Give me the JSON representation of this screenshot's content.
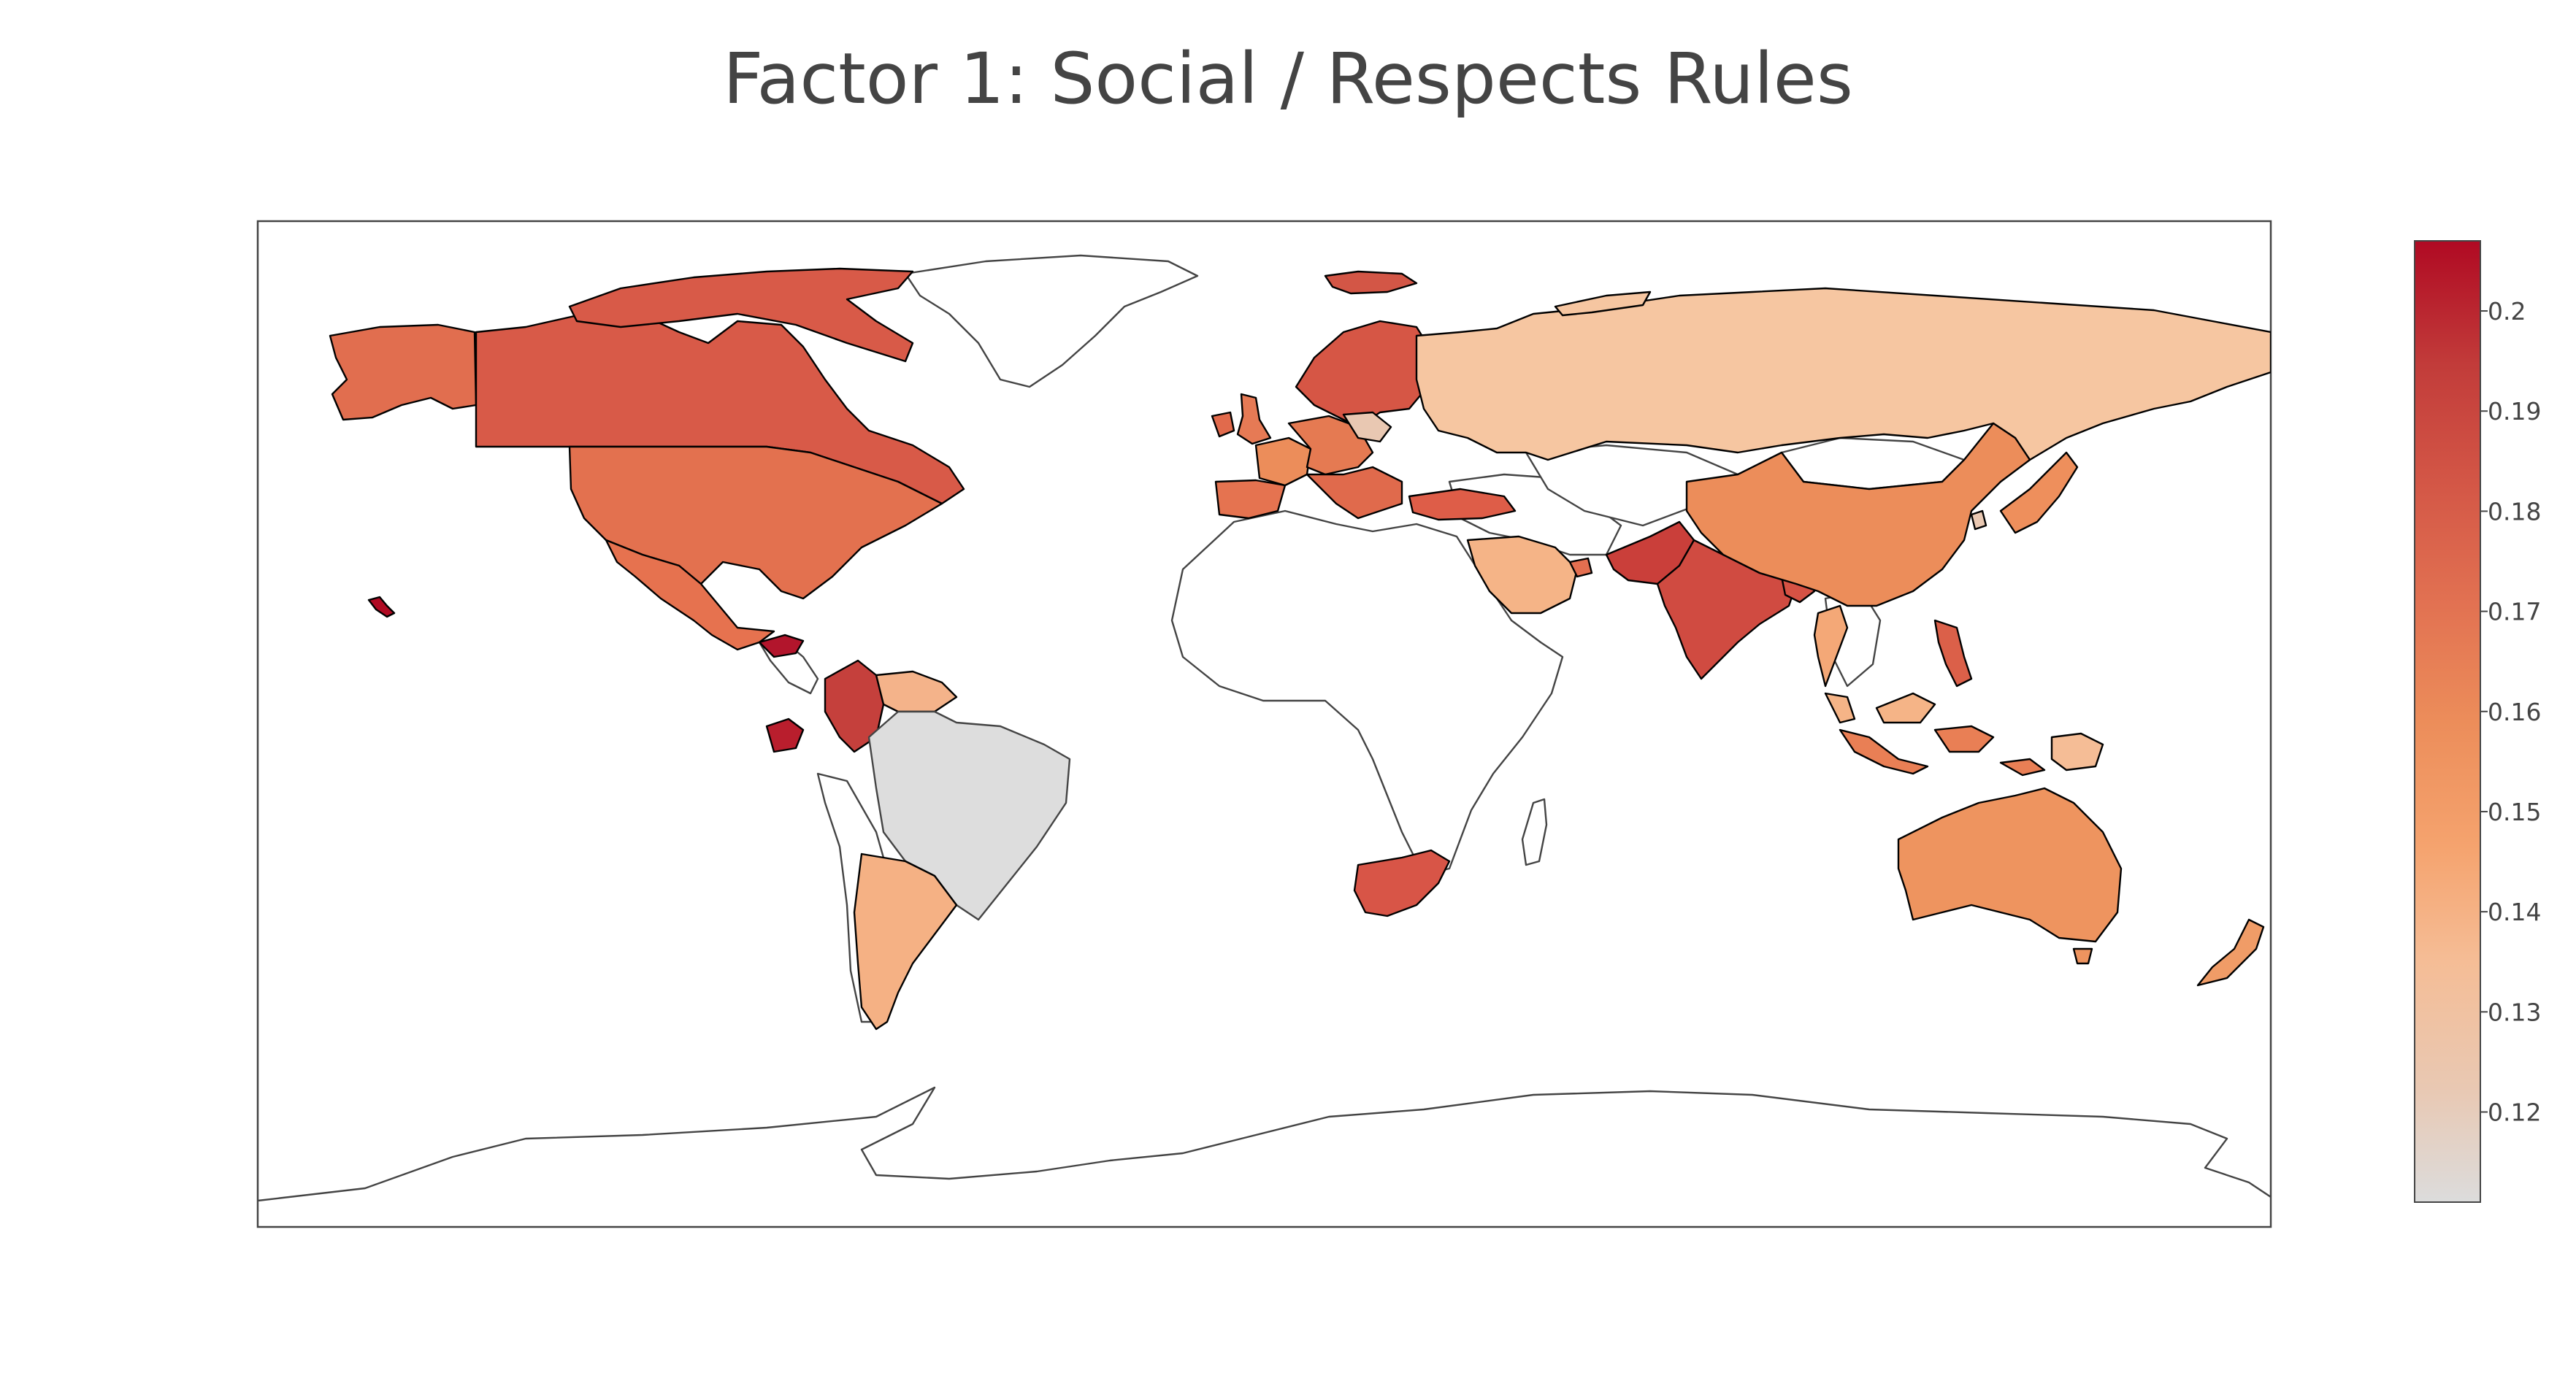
{
  "title": "Factor 1: Social / Respects Rules",
  "colorbar": {
    "ticks": [
      0.12,
      0.13,
      0.14,
      0.15,
      0.16,
      0.17,
      0.18,
      0.19,
      0.2
    ],
    "tick_labels": [
      "0.12",
      "0.13",
      "0.14",
      "0.15",
      "0.16",
      "0.17",
      "0.18",
      "0.19",
      "0.2"
    ],
    "min": 0.111,
    "max": 0.207,
    "colorscale": [
      "#dcdcdc",
      "#e9c8b2",
      "#f5bd96",
      "#f5a36e",
      "#ec8d5a",
      "#e27252",
      "#d35646",
      "#c23c3a",
      "#b00a23"
    ]
  },
  "chart_data": {
    "type": "choropleth",
    "projection": "equirectangular",
    "values": [
      {
        "country": "Canada",
        "value": 0.175
      },
      {
        "country": "United States",
        "value": 0.166
      },
      {
        "country": "Alaska (US)",
        "value": 0.166
      },
      {
        "country": "Greenland",
        "value": null
      },
      {
        "country": "Mexico",
        "value": 0.168
      },
      {
        "country": "Honduras",
        "value": 0.205
      },
      {
        "country": "Colombia",
        "value": 0.183
      },
      {
        "country": "Ecuador",
        "value": 0.199
      },
      {
        "country": "Venezuela",
        "value": 0.145
      },
      {
        "country": "Brazil",
        "value": 0.111
      },
      {
        "country": "Argentina",
        "value": 0.144
      },
      {
        "country": "United Kingdom",
        "value": 0.167
      },
      {
        "country": "Ireland",
        "value": 0.172
      },
      {
        "country": "Iceland",
        "value": 0.178
      },
      {
        "country": "Norway",
        "value": 0.178
      },
      {
        "country": "Sweden",
        "value": 0.175
      },
      {
        "country": "Finland",
        "value": 0.172
      },
      {
        "country": "Spain",
        "value": 0.168
      },
      {
        "country": "Portugal",
        "value": 0.174
      },
      {
        "country": "France",
        "value": 0.162
      },
      {
        "country": "Germany",
        "value": 0.165
      },
      {
        "country": "Italy",
        "value": 0.17
      },
      {
        "country": "Poland",
        "value": 0.122
      },
      {
        "country": "Turkey",
        "value": 0.178
      },
      {
        "country": "Russia",
        "value": 0.132
      },
      {
        "country": "Saudi Arabia",
        "value": 0.143
      },
      {
        "country": "United Arab Emirates",
        "value": 0.172
      },
      {
        "country": "Pakistan",
        "value": 0.185
      },
      {
        "country": "India",
        "value": 0.183
      },
      {
        "country": "Bangladesh",
        "value": 0.178
      },
      {
        "country": "China",
        "value": 0.156
      },
      {
        "country": "Japan",
        "value": 0.162
      },
      {
        "country": "South Korea",
        "value": 0.125
      },
      {
        "country": "Thailand",
        "value": 0.15
      },
      {
        "country": "Malaysia",
        "value": 0.145
      },
      {
        "country": "Philippines",
        "value": 0.172
      },
      {
        "country": "Indonesia",
        "value": 0.16
      },
      {
        "country": "Papua New Guinea",
        "value": 0.131
      },
      {
        "country": "Australia",
        "value": 0.156
      },
      {
        "country": "New Zealand",
        "value": 0.152
      },
      {
        "country": "South Africa",
        "value": 0.178
      }
    ]
  }
}
